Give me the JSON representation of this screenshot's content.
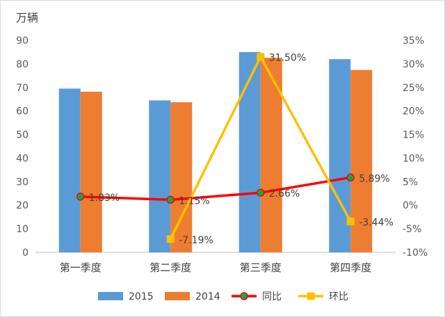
{
  "chart_data": {
    "type": "bar",
    "unit_label": "万辆",
    "categories": [
      "第一季度",
      "第二季度",
      "第三季度",
      "第四季度"
    ],
    "left_axis": {
      "min": 0,
      "max": 90,
      "step": 10,
      "ticks": [
        "0",
        "10",
        "20",
        "30",
        "40",
        "50",
        "60",
        "70",
        "80",
        "90"
      ]
    },
    "right_axis": {
      "min": -10,
      "max": 35,
      "step": 5,
      "ticks": [
        "-10%",
        "-5%",
        "0%",
        "5%",
        "10%",
        "15%",
        "20%",
        "25%",
        "30%",
        "35%"
      ]
    },
    "series": [
      {
        "name": "2015",
        "kind": "bar",
        "axis": "left",
        "color": "#5b9bd5",
        "values": [
          69.5,
          64.5,
          85,
          82
        ]
      },
      {
        "name": "2014",
        "kind": "bar",
        "axis": "left",
        "color": "#ed7d31",
        "values": [
          68.2,
          63.7,
          82.6,
          77.4
        ]
      },
      {
        "name": "同比",
        "kind": "line",
        "axis": "right",
        "color": "#ff0000",
        "marker": "circle",
        "marker_color": "#00b050",
        "values": [
          1.83,
          1.15,
          2.66,
          5.89
        ],
        "labels": [
          "1.83%",
          "1.15%",
          "2.66%",
          "5.89%"
        ]
      },
      {
        "name": "环比",
        "kind": "line",
        "axis": "right",
        "color": "#ffc000",
        "marker": "square",
        "marker_color": "#ffc000",
        "values": [
          null,
          -7.19,
          31.5,
          -3.44
        ],
        "labels": [
          "",
          "-7.19%",
          "31.50%",
          "-3.44%"
        ]
      }
    ],
    "legend_position": "bottom",
    "grid": false
  }
}
